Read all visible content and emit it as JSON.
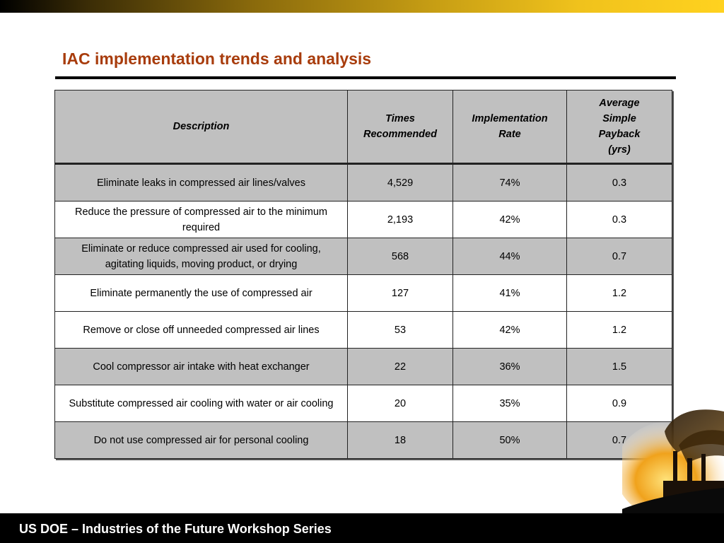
{
  "slide": {
    "title": "IAC implementation trends and analysis",
    "footer": "US DOE – Industries of the Future Workshop Series"
  },
  "table": {
    "headers": {
      "description": "Description",
      "times_line1": "Times",
      "times_line2": "Recommended",
      "impl_line1": "Implementation",
      "impl_line2": "Rate",
      "payback_line1": "Average",
      "payback_line2": "Simple",
      "payback_line3": "Payback",
      "payback_line4": "(yrs)"
    },
    "rows": [
      {
        "description": "Eliminate leaks in compressed air lines/valves",
        "times": "4,529",
        "rate": "74%",
        "payback": "0.3"
      },
      {
        "description": "Reduce the pressure of compressed air to the minimum required",
        "times": "2,193",
        "rate": "42%",
        "payback": "0.3"
      },
      {
        "description": "Eliminate or reduce compressed air used for cooling, agitating liquids, moving product, or drying",
        "times": "568",
        "rate": "44%",
        "payback": "0.7"
      },
      {
        "description": "Eliminate permanently the use of compressed air",
        "times": "127",
        "rate": "41%",
        "payback": "1.2"
      },
      {
        "description": "Remove or close off unneeded compressed air lines",
        "times": "53",
        "rate": "42%",
        "payback": "1.2"
      },
      {
        "description": "Cool compressor air intake with heat exchanger",
        "times": "22",
        "rate": "36%",
        "payback": "1.5"
      },
      {
        "description": "Substitute compressed air cooling with water or air cooling",
        "times": "20",
        "rate": "35%",
        "payback": "0.9"
      },
      {
        "description": "Do not use compressed air for personal cooling",
        "times": "18",
        "rate": "50%",
        "payback": "0.7"
      }
    ]
  },
  "colors": {
    "title": "#a83c0c",
    "header_fill": "#c0c0c0",
    "row_gray": "#c0c0c0",
    "row_white": "#ffffff",
    "footer_bg": "#000000"
  },
  "images": {
    "decoration": "industrial-smokestacks-image"
  }
}
